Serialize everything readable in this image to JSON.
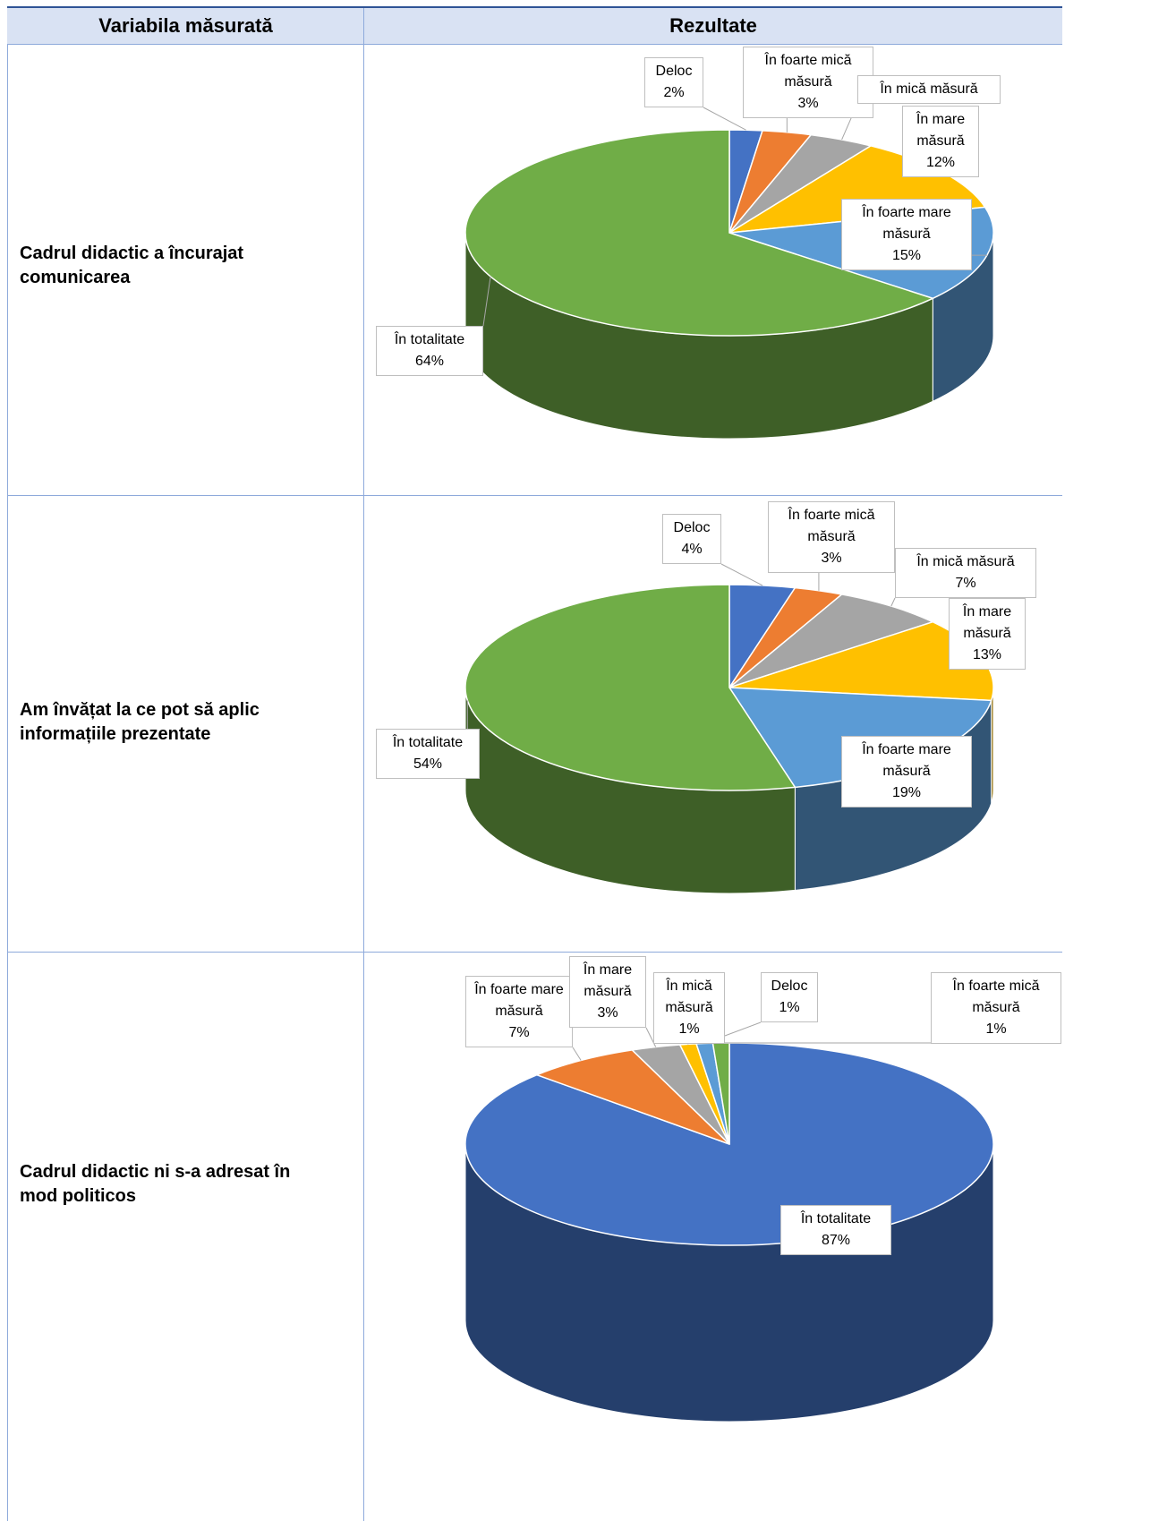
{
  "table": {
    "headers": [
      "Variabila măsurată",
      "Rezultate"
    ],
    "rows": [
      {
        "label": "Cadrul didactic a încurajat comunicarea",
        "chart": {
          "type": "pie",
          "categories": [
            "Deloc",
            "În foarte mică măsură",
            "În mică măsură",
            "În mare măsură",
            "În foarte mare măsură",
            "În totalitate"
          ],
          "values": [
            2,
            3,
            4,
            12,
            15,
            64
          ],
          "value_labels": [
            "2%",
            "3%",
            null,
            "12%",
            "15%",
            "64%"
          ],
          "colors": [
            "#4472c4",
            "#ed7d31",
            "#a5a5a5",
            "#ffc000",
            "#5b9bd5",
            "#70ad47"
          ]
        }
      },
      {
        "label": "Am învățat la ce pot să aplic informațiile prezentate",
        "chart": {
          "type": "pie",
          "categories": [
            "Deloc",
            "În foarte mică măsură",
            "În mică măsură",
            "În mare măsură",
            "În foarte mare măsură",
            "În totalitate"
          ],
          "values": [
            4,
            3,
            7,
            13,
            19,
            54
          ],
          "value_labels": [
            "4%",
            "3%",
            "7%",
            "13%",
            "19%",
            "54%"
          ],
          "colors": [
            "#4472c4",
            "#ed7d31",
            "#a5a5a5",
            "#ffc000",
            "#5b9bd5",
            "#70ad47"
          ]
        }
      },
      {
        "label": "Cadrul didactic ni s-a adresat în mod politicos",
        "chart": {
          "type": "pie",
          "categories": [
            "În totalitate",
            "În foarte mare măsură",
            "În mare măsură",
            "În mică măsură",
            "Deloc",
            "În foarte mică măsură"
          ],
          "values": [
            87,
            7,
            3,
            1,
            1,
            1
          ],
          "value_labels": [
            "87%",
            "7%",
            "3%",
            "1%",
            "1%",
            "1%"
          ],
          "colors": [
            "#4472c4",
            "#ed7d31",
            "#a5a5a5",
            "#ffc000",
            "#5b9bd5",
            "#70ad47"
          ]
        }
      }
    ]
  }
}
